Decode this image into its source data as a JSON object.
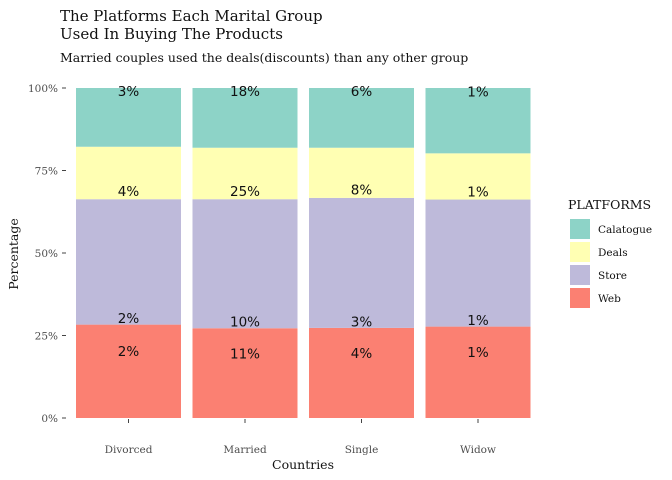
{
  "chart_data": {
    "type": "bar",
    "stacked": true,
    "percent_stacked": true,
    "title": "The Platforms Each Marital Group\nUsed In Buying The Products",
    "subtitle": "Married couples used the deals(discounts) than any other group",
    "xlabel": "Countries",
    "ylabel": "Percentage",
    "ylim": [
      0,
      1
    ],
    "yticks": [
      "0%",
      "25%",
      "50%",
      "75%",
      "100%"
    ],
    "categories": [
      "Divorced",
      "Married",
      "Single",
      "Widow"
    ],
    "legend": {
      "title": "PLATFORMS",
      "position": "right"
    },
    "series": [
      {
        "name": "Web",
        "color": "#FB8072",
        "shares": [
          0.283,
          0.272,
          0.273,
          0.277
        ],
        "labels": [
          "2%",
          "11%",
          "4%",
          "1%"
        ]
      },
      {
        "name": "Store",
        "color": "#BEBADA",
        "shares": [
          0.38,
          0.391,
          0.394,
          0.385
        ],
        "labels": [
          "2%",
          "10%",
          "3%",
          "1%"
        ]
      },
      {
        "name": "Deals",
        "color": "#FFFFB3",
        "shares": [
          0.159,
          0.156,
          0.152,
          0.14
        ],
        "labels": [
          "4%",
          "25%",
          "8%",
          "1%"
        ]
      },
      {
        "name": "Calatogue",
        "color": "#8DD3C7",
        "shares": [
          0.178,
          0.181,
          0.181,
          0.198
        ],
        "labels": [
          "3%",
          "18%",
          "6%",
          "1%"
        ]
      }
    ]
  }
}
